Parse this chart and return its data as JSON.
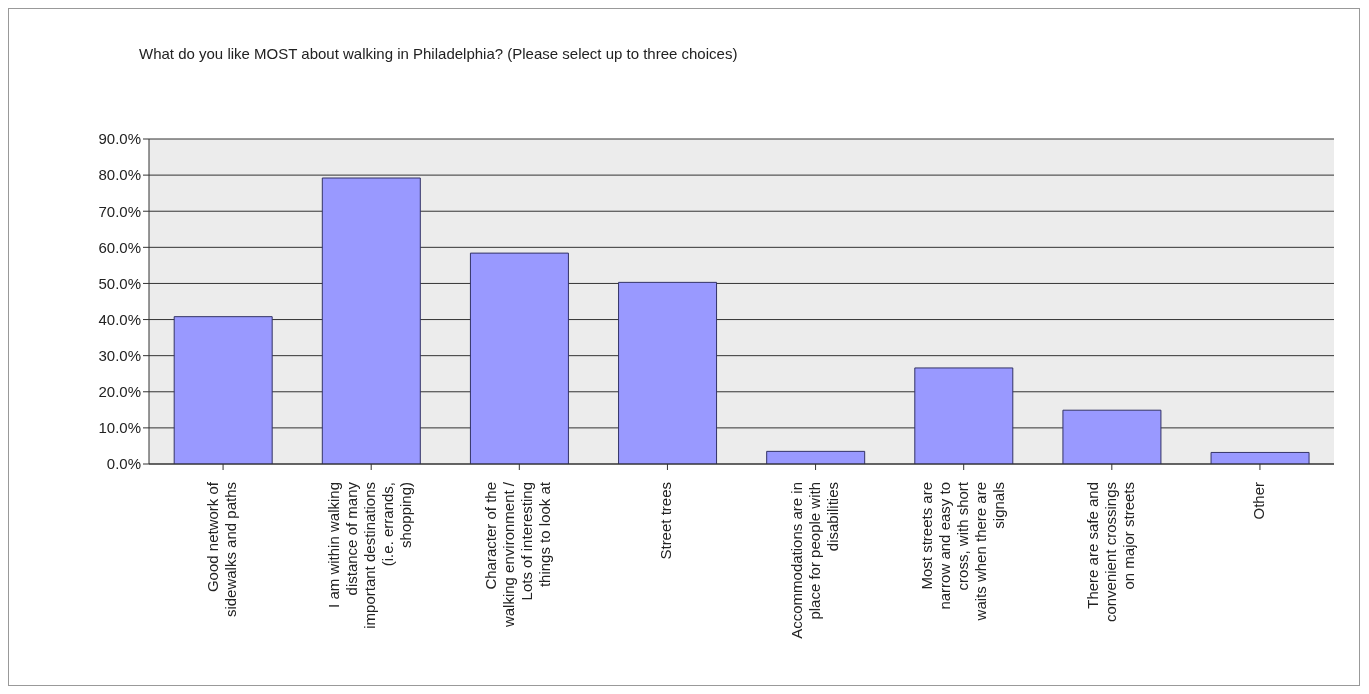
{
  "chart_data": {
    "type": "bar",
    "title": "What do you like MOST about walking in Philadelphia?  (Please select up to three choices)",
    "categories": [
      "Good network of sidewalks and paths",
      "I am within walking distance of many important destinations (i.e. errands, shopping)",
      "Character of the walking environment / Lots of interesting things to look at",
      "Street trees",
      "Accommodations are in place for people with disabilities",
      "Most streets are narrow and easy to cross, with short waits when there are signals",
      "There are safe and convenient crossings on major streets",
      "Other"
    ],
    "values": [
      40.8,
      79.2,
      58.4,
      50.3,
      3.5,
      26.6,
      14.9,
      3.2
    ],
    "color": "#9999ff",
    "ylim": [
      0,
      90
    ],
    "yticks": [
      {
        "value": 0,
        "label": "0.0%"
      },
      {
        "value": 10,
        "label": "10.0%"
      },
      {
        "value": 20,
        "label": "20.0%"
      },
      {
        "value": 30,
        "label": "30.0%"
      },
      {
        "value": 40,
        "label": "40.0%"
      },
      {
        "value": 50,
        "label": "50.0%"
      },
      {
        "value": 60,
        "label": "60.0%"
      },
      {
        "value": 70,
        "label": "70.0%"
      },
      {
        "value": 80,
        "label": "80.0%"
      },
      {
        "value": 90,
        "label": "90.0%"
      }
    ],
    "grid": "y",
    "legend": false
  }
}
